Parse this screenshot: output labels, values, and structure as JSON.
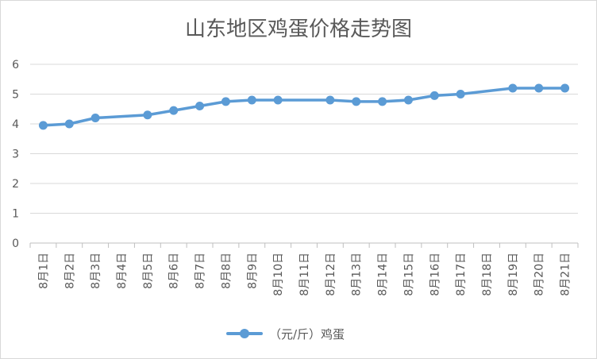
{
  "chart_data": {
    "type": "line",
    "title": "山东地区鸡蛋价格走势图",
    "categories": [
      "8月1日",
      "8月2日",
      "8月3日",
      "8月4日",
      "8月5日",
      "8月6日",
      "8月7日",
      "8月8日",
      "8月9日",
      "8月10日",
      "8月11日",
      "8月12日",
      "8月13日",
      "8月14日",
      "8月15日",
      "8月16日",
      "8月17日",
      "8月18日",
      "8月19日",
      "8月20日",
      "8月21日"
    ],
    "series": [
      {
        "name": "（元/斤）鸡蛋",
        "color": "#5b9bd5",
        "values": [
          3.95,
          4.0,
          4.2,
          null,
          4.3,
          4.45,
          4.6,
          4.75,
          4.8,
          4.8,
          null,
          4.8,
          4.75,
          4.75,
          4.8,
          4.95,
          5.0,
          null,
          5.2,
          5.2,
          5.2
        ]
      }
    ],
    "ylim": [
      0,
      6
    ],
    "yticks": [
      "0",
      "1",
      "2",
      "3",
      "4",
      "5",
      "6"
    ],
    "grid": true,
    "legend_position": "bottom",
    "xlabel": "",
    "ylabel": ""
  }
}
